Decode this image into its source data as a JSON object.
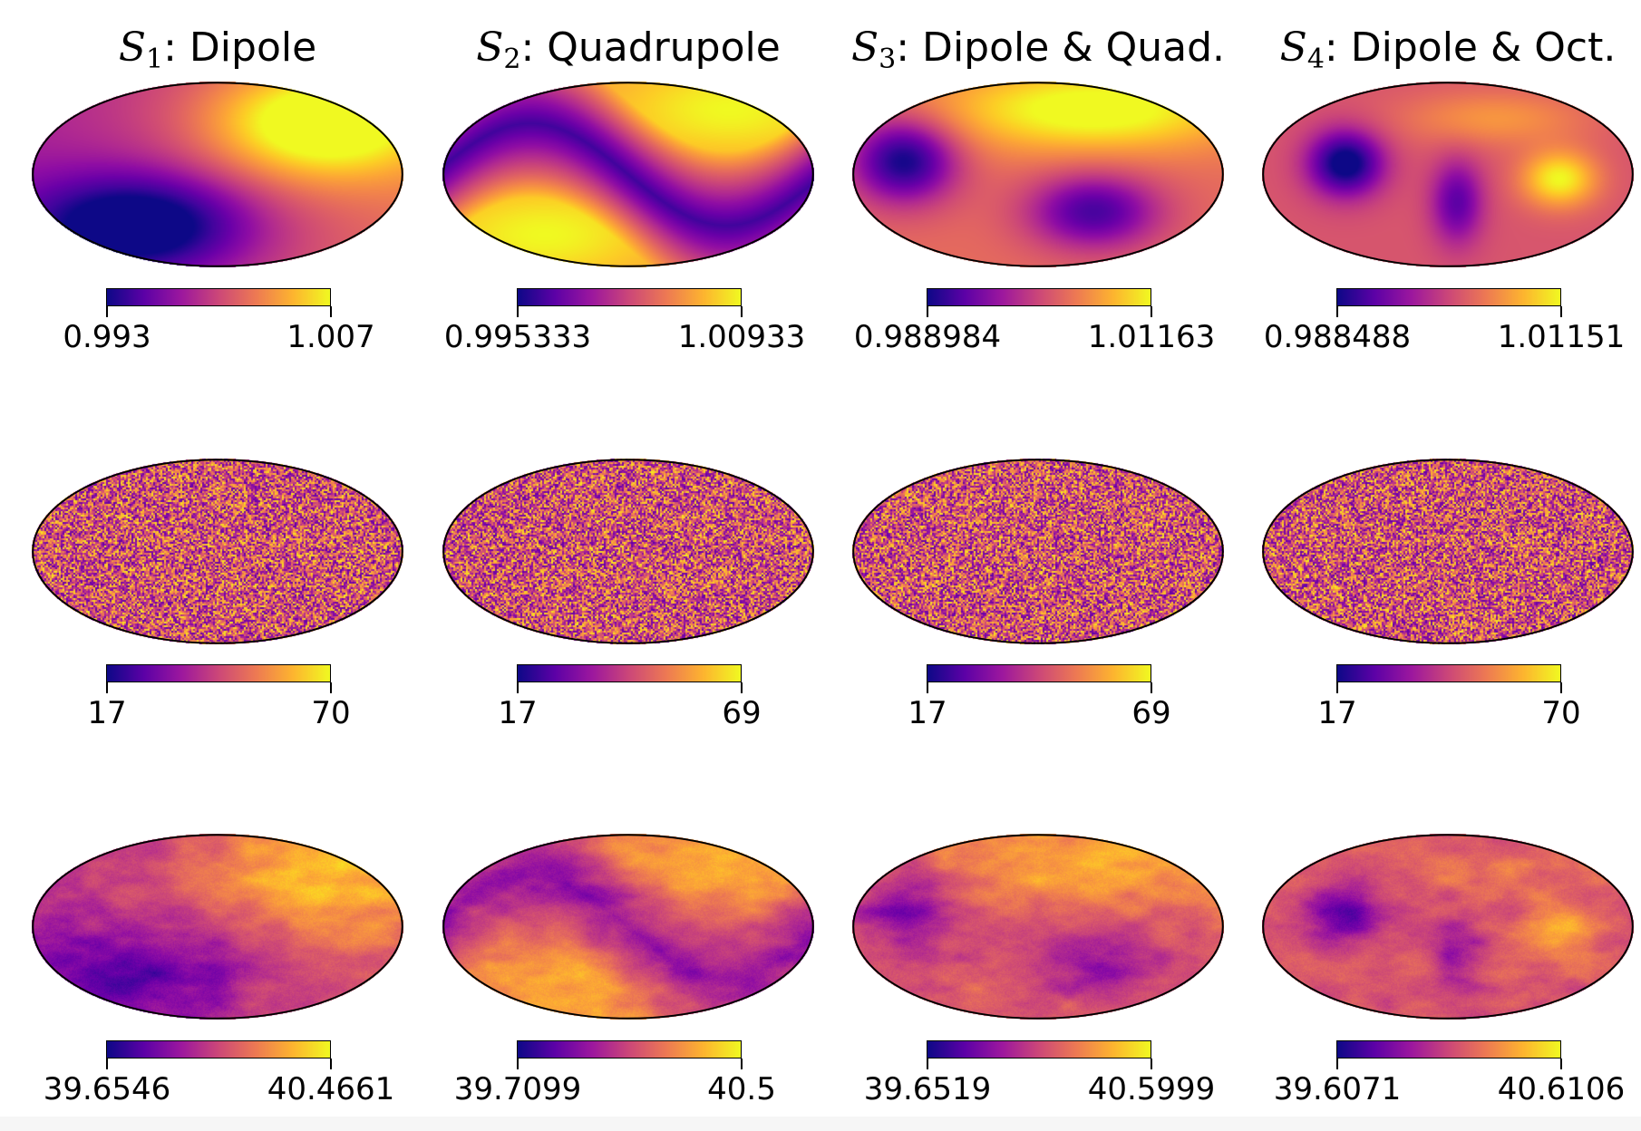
{
  "titles": [
    {
      "sym": "S",
      "sub": "1",
      "text": ": Dipole"
    },
    {
      "sym": "S",
      "sub": "2",
      "text": ": Quadrupole"
    },
    {
      "sym": "S",
      "sub": "3",
      "text": ": Dipole & Quad."
    },
    {
      "sym": "S",
      "sub": "4",
      "text": ": Dipole & Oct."
    }
  ],
  "colormap": "plasma",
  "colors": {
    "low": "#0d0887",
    "mid": "#cc4778",
    "high": "#f0f921",
    "outline": "#000000"
  },
  "rows": [
    {
      "kind": "smooth",
      "colorbars": [
        {
          "min": "0.993",
          "max": "1.007"
        },
        {
          "min": "0.995333",
          "max": "1.00933"
        },
        {
          "min": "0.988984",
          "max": "1.01163"
        },
        {
          "min": "0.988488",
          "max": "1.01151"
        }
      ]
    },
    {
      "kind": "noise",
      "colorbars": [
        {
          "min": "17",
          "max": "70"
        },
        {
          "min": "17",
          "max": "69"
        },
        {
          "min": "17",
          "max": "69"
        },
        {
          "min": "17",
          "max": "70"
        }
      ]
    },
    {
      "kind": "mixed",
      "colorbars": [
        {
          "min": "39.6546",
          "max": "40.4661"
        },
        {
          "min": "39.7099",
          "max": "40.5"
        },
        {
          "min": "39.6519",
          "max": "40.5999"
        },
        {
          "min": "39.6071",
          "max": "40.6106"
        }
      ]
    }
  ]
}
